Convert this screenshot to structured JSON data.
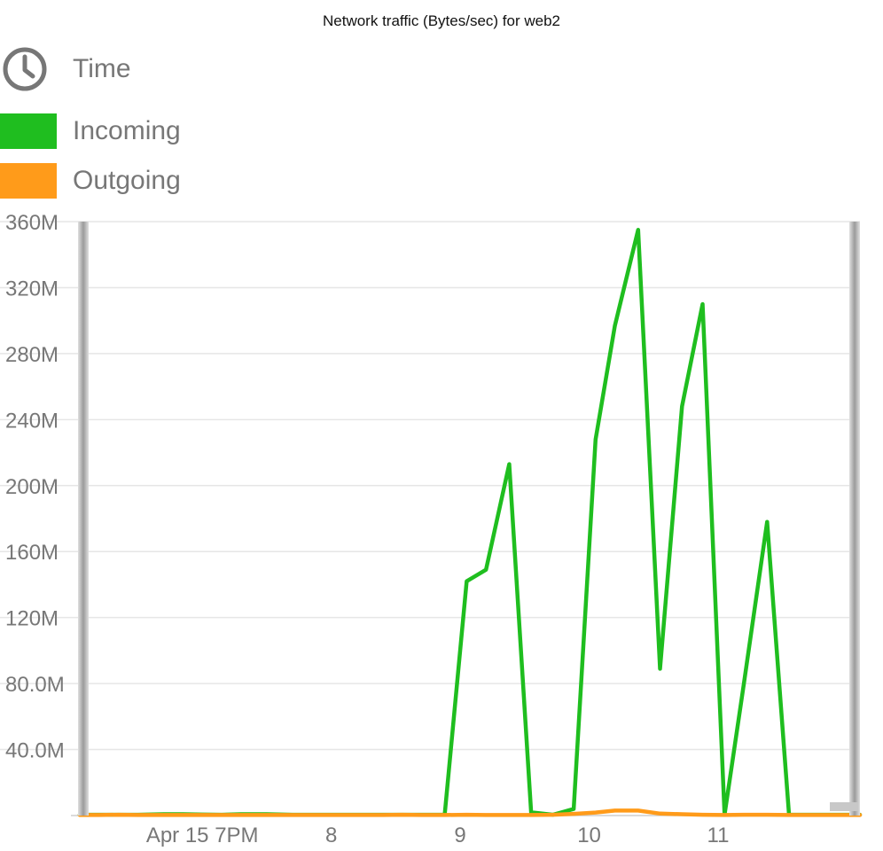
{
  "chart_data": {
    "type": "line",
    "title": "Network traffic (Bytes/sec) for web2",
    "legend": {
      "time_label": "Time",
      "entries": [
        "Incoming",
        "Outgoing"
      ]
    },
    "x_unit": "hours",
    "x_ticks": [
      {
        "x": 19,
        "label": "Apr 15 7PM"
      },
      {
        "x": 20,
        "label": "8"
      },
      {
        "x": 21,
        "label": "9"
      },
      {
        "x": 22,
        "label": "10"
      },
      {
        "x": 23,
        "label": "11"
      }
    ],
    "xlim": [
      18.05,
      24.1
    ],
    "ylim": [
      0,
      360
    ],
    "y_ticks": [
      {
        "v": 40,
        "label": "40.0M"
      },
      {
        "v": 80,
        "label": "80.0M"
      },
      {
        "v": 120,
        "label": "120M"
      },
      {
        "v": 160,
        "label": "160M"
      },
      {
        "v": 200,
        "label": "200M"
      },
      {
        "v": 240,
        "label": "240M"
      },
      {
        "v": 280,
        "label": "280M"
      },
      {
        "v": 320,
        "label": "320M"
      },
      {
        "v": 360,
        "label": "360M"
      }
    ],
    "grid": true,
    "series": [
      {
        "name": "Incoming",
        "color": "#1fbe1f",
        "x": [
          18.05,
          18.2,
          18.35,
          18.5,
          18.7,
          18.85,
          19.0,
          19.15,
          19.3,
          19.5,
          19.7,
          19.85,
          20.0,
          20.2,
          20.4,
          20.55,
          20.7,
          20.88,
          21.05,
          21.2,
          21.38,
          21.55,
          21.72,
          21.88,
          22.05,
          22.2,
          22.38,
          22.55,
          22.72,
          22.88,
          23.05,
          23.2,
          23.38,
          23.55,
          23.75,
          23.95,
          24.1
        ],
        "y": [
          0.5,
          0.5,
          0.5,
          0.5,
          0.8,
          0.8,
          0.6,
          0.5,
          0.8,
          0.8,
          0.5,
          0.5,
          0.5,
          0.5,
          0.5,
          0.5,
          0.5,
          0.5,
          142,
          149,
          213,
          2,
          0.5,
          4,
          228,
          297,
          355,
          89,
          248,
          310,
          0.5,
          80,
          178,
          0.5,
          0.5,
          0.5,
          0.5
        ]
      },
      {
        "name": "Outgoing",
        "color": "#ff9b1a",
        "x": [
          18.05,
          18.2,
          18.35,
          18.5,
          18.7,
          18.85,
          19.0,
          19.15,
          19.3,
          19.5,
          19.7,
          19.85,
          20.0,
          20.2,
          20.4,
          20.55,
          20.7,
          20.88,
          21.05,
          21.2,
          21.38,
          21.55,
          21.72,
          21.88,
          22.05,
          22.2,
          22.38,
          22.55,
          22.72,
          22.88,
          23.05,
          23.2,
          23.38,
          23.55,
          23.75,
          23.95,
          24.1
        ],
        "y": [
          0.3,
          0.3,
          0.5,
          0.3,
          0.3,
          0.3,
          0.3,
          0.3,
          0.3,
          0.3,
          0.3,
          0.3,
          0.3,
          0.3,
          0.3,
          0.5,
          0.3,
          0.3,
          0.5,
          0.3,
          0.3,
          0.3,
          0.5,
          1.0,
          1.8,
          3.0,
          3.0,
          1.2,
          0.8,
          0.5,
          0.3,
          0.5,
          0.5,
          0.3,
          0.3,
          0.3,
          0.3
        ]
      }
    ]
  }
}
